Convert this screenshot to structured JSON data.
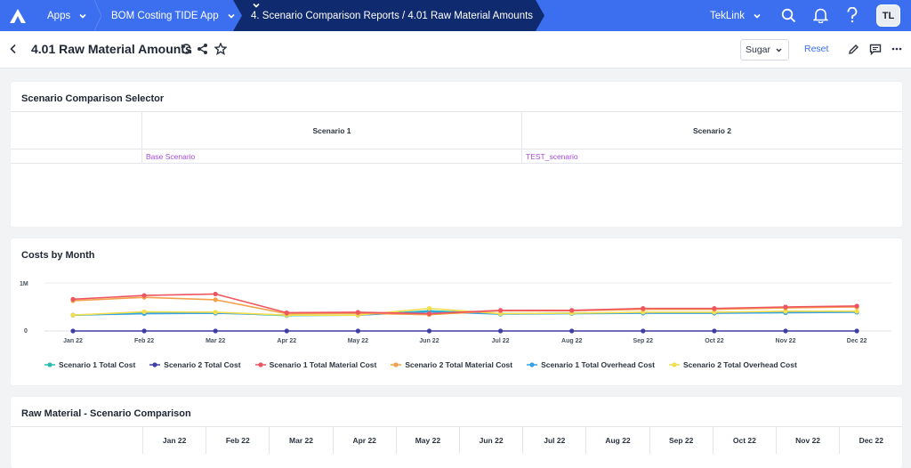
{
  "topbar": {
    "apps_label": "Apps",
    "app_label": "BOM Costing TIDE App",
    "report_label": "4. Scenario Comparison Reports / 4.01 Raw Material Amounts",
    "tenant_label": "TekLink",
    "avatar_initials": "TL",
    "brand_color": "#3b6ff0",
    "active_color": "#0f2a6e"
  },
  "header": {
    "title": "4.01 Raw Material Amounts",
    "filter_value": "Sugar",
    "reset_label": "Reset"
  },
  "selector": {
    "title": "Scenario Comparison Selector",
    "col1": "Scenario 1",
    "col2": "Scenario 2",
    "val1": "Base Scenario",
    "val2": "TEST_scenario"
  },
  "costs": {
    "title": "Costs by Month",
    "y_top_label": "1M",
    "y_zero_label": "0",
    "legend": [
      {
        "name": "Scenario 1 Total Cost",
        "color": "#2bbab3"
      },
      {
        "name": "Scenario 2 Total Cost",
        "color": "#3e3fa6"
      },
      {
        "name": "Scenario 1 Total Material Cost",
        "color": "#ee5560"
      },
      {
        "name": "Scenario 2 Total Material Cost",
        "color": "#f5a04a"
      },
      {
        "name": "Scenario 1 Total Overhead Cost",
        "color": "#37a3e6"
      },
      {
        "name": "Scenario 2 Total Overhead Cost",
        "color": "#f2dd4a"
      }
    ]
  },
  "chart_data": {
    "type": "line",
    "categories": [
      "Jan 22",
      "Feb 22",
      "Mar 22",
      "Apr 22",
      "May 22",
      "Jun 22",
      "Jul 22",
      "Aug 22",
      "Sep 22",
      "Oct 22",
      "Nov 22",
      "Dec 22"
    ],
    "ylim": [
      0,
      1000000
    ],
    "y_ticks": [
      "0",
      "1M"
    ],
    "legend_position": "bottom",
    "series": [
      {
        "name": "Scenario 1 Total Cost",
        "color": "#2bbab3",
        "values": [
          330000,
          370000,
          380000,
          320000,
          330000,
          420000,
          360000,
          370000,
          380000,
          380000,
          390000,
          400000
        ]
      },
      {
        "name": "Scenario 2 Total Cost",
        "color": "#3e3fa6",
        "values": [
          0,
          0,
          0,
          0,
          0,
          0,
          0,
          0,
          0,
          0,
          0,
          0
        ]
      },
      {
        "name": "Scenario 1 Total Material Cost",
        "color": "#ee5560",
        "values": [
          660000,
          740000,
          770000,
          380000,
          390000,
          360000,
          430000,
          430000,
          470000,
          470000,
          500000,
          520000
        ]
      },
      {
        "name": "Scenario 2 Total Material Cost",
        "color": "#f5a04a",
        "values": [
          630000,
          700000,
          650000,
          360000,
          370000,
          340000,
          420000,
          420000,
          450000,
          450000,
          480000,
          500000
        ]
      },
      {
        "name": "Scenario 1 Total Overhead Cost",
        "color": "#37a3e6",
        "values": [
          330000,
          360000,
          370000,
          330000,
          330000,
          400000,
          350000,
          360000,
          370000,
          370000,
          380000,
          390000
        ]
      },
      {
        "name": "Scenario 2 Total Overhead Cost",
        "color": "#f2dd4a",
        "values": [
          330000,
          400000,
          390000,
          330000,
          330000,
          470000,
          360000,
          370000,
          390000,
          390000,
          410000,
          410000
        ]
      }
    ]
  },
  "raw_material": {
    "title": "Raw Material - Scenario Comparison",
    "months": [
      "Jan 22",
      "Feb 22",
      "Mar 22",
      "Apr 22",
      "May 22",
      "Jun 22",
      "Jul 22",
      "Aug 22",
      "Sep 22",
      "Oct 22",
      "Nov 22",
      "Dec 22"
    ]
  }
}
